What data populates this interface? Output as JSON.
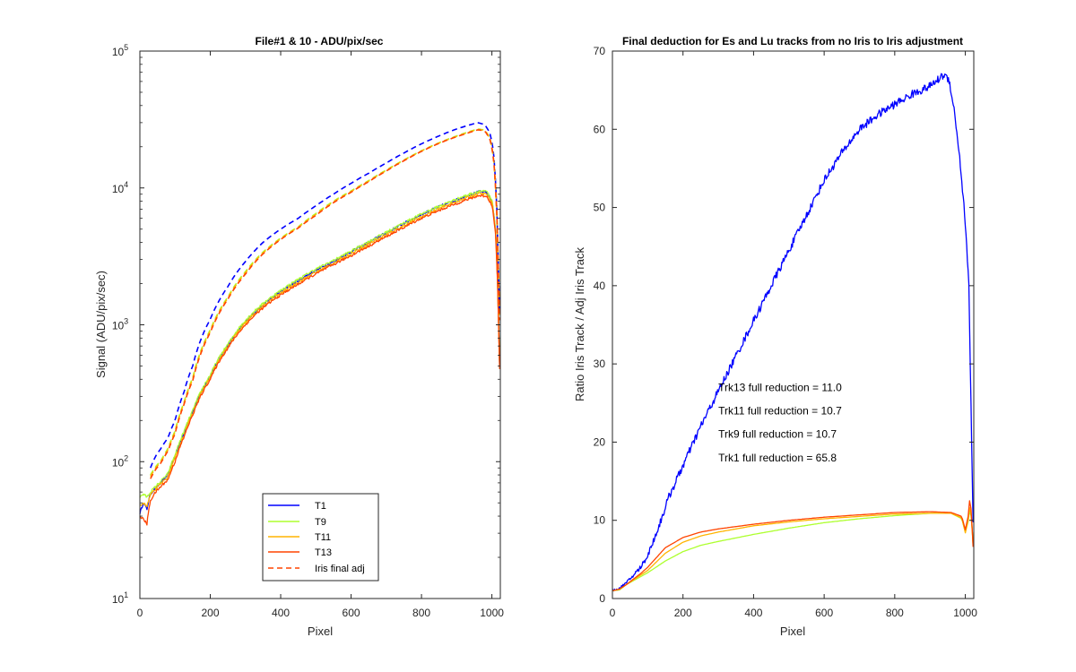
{
  "chart_data": [
    {
      "type": "line",
      "title": "File#1 & 10 - ADU/pix/sec",
      "xlabel": "Pixel",
      "ylabel": "Signal (ADU/pix/sec)",
      "xlim": [
        0,
        1024
      ],
      "ylim": [
        10,
        100000
      ],
      "yscale": "log",
      "grid": false,
      "xticks": [
        0,
        200,
        400,
        600,
        800,
        1000
      ],
      "xtick_labels": [
        "0",
        "200",
        "400",
        "600",
        "800",
        "1000"
      ],
      "yticks": [
        10,
        100,
        1000,
        10000,
        100000
      ],
      "ytick_labels": [
        {
          "base": "10",
          "exp": "1"
        },
        {
          "base": "10",
          "exp": "2"
        },
        {
          "base": "10",
          "exp": "3"
        },
        {
          "base": "10",
          "exp": "4"
        },
        {
          "base": "10",
          "exp": "5"
        }
      ],
      "legend": {
        "placement": "bottom-center",
        "entries": [
          {
            "label": "T1",
            "color": "#0000ff",
            "style": "solid"
          },
          {
            "label": "T9",
            "color": "#adff2f",
            "style": "solid"
          },
          {
            "label": "T11",
            "color": "#ffb400",
            "style": "solid"
          },
          {
            "label": "T13",
            "color": "#ff4500",
            "style": "solid"
          },
          {
            "label": "Iris final adj",
            "color": "#ff4500",
            "style": "dashed"
          }
        ]
      },
      "series": [
        {
          "name": "T1",
          "color": "#0000ff",
          "style": "solid",
          "noise": 0.04,
          "x": [
            0,
            10,
            20,
            30,
            45,
            60,
            80,
            100,
            125,
            150,
            200,
            250,
            300,
            350,
            400,
            450,
            500,
            550,
            600,
            650,
            700,
            750,
            800,
            850,
            900,
            940,
            965,
            985,
            1000,
            1010,
            1015,
            1019,
            1022
          ],
          "y": [
            42,
            50,
            45,
            58,
            64,
            70,
            80,
            110,
            160,
            230,
            420,
            700,
            1050,
            1400,
            1750,
            2100,
            2500,
            2900,
            3400,
            4000,
            4700,
            5500,
            6400,
            7300,
            8200,
            9000,
            9400,
            9300,
            8000,
            5000,
            2500,
            1000,
            500
          ]
        },
        {
          "name": "T9",
          "color": "#adff2f",
          "style": "solid",
          "noise": 0.04,
          "x": [
            0,
            10,
            20,
            30,
            45,
            60,
            80,
            100,
            125,
            150,
            200,
            250,
            300,
            350,
            400,
            450,
            500,
            550,
            600,
            650,
            700,
            750,
            800,
            850,
            900,
            940,
            965,
            985,
            1000,
            1010,
            1015,
            1019,
            1022
          ],
          "y": [
            55,
            58,
            55,
            60,
            66,
            72,
            82,
            112,
            165,
            235,
            430,
            720,
            1080,
            1430,
            1780,
            2150,
            2550,
            2950,
            3450,
            4050,
            4750,
            5550,
            6450,
            7350,
            8300,
            9050,
            9500,
            9400,
            8100,
            5100,
            2500,
            1000,
            500
          ]
        },
        {
          "name": "T11",
          "color": "#ffb400",
          "style": "solid",
          "noise": 0.04,
          "x": [
            0,
            10,
            20,
            30,
            45,
            60,
            80,
            100,
            125,
            150,
            200,
            250,
            300,
            350,
            400,
            450,
            500,
            550,
            600,
            650,
            700,
            750,
            800,
            850,
            900,
            940,
            965,
            985,
            1000,
            1010,
            1015,
            1019,
            1022
          ],
          "y": [
            48,
            50,
            47,
            57,
            63,
            69,
            78,
            105,
            155,
            225,
            410,
            690,
            1030,
            1370,
            1700,
            2050,
            2420,
            2820,
            3300,
            3900,
            4550,
            5300,
            6150,
            7050,
            7950,
            8700,
            9100,
            9000,
            7800,
            4900,
            2400,
            1000,
            500
          ]
        },
        {
          "name": "T13",
          "color": "#ff4500",
          "style": "solid",
          "noise": 0.04,
          "x": [
            0,
            10,
            20,
            30,
            45,
            60,
            80,
            100,
            125,
            150,
            200,
            250,
            300,
            350,
            400,
            450,
            500,
            550,
            600,
            650,
            700,
            750,
            800,
            850,
            900,
            940,
            965,
            985,
            1000,
            1010,
            1015,
            1019,
            1022
          ],
          "y": [
            40,
            38,
            35,
            52,
            60,
            66,
            74,
            100,
            150,
            218,
            400,
            675,
            1000,
            1330,
            1650,
            1980,
            2350,
            2750,
            3200,
            3750,
            4400,
            5150,
            6000,
            6850,
            7700,
            8400,
            8800,
            8700,
            7500,
            4700,
            2300,
            950,
            480
          ]
        },
        {
          "name": "Iris final adj (T1)",
          "color": "#0000ff",
          "style": "dashed",
          "noise": 0.0,
          "x": [
            30,
            45,
            60,
            80,
            100,
            125,
            150,
            200,
            250,
            300,
            350,
            400,
            450,
            500,
            550,
            600,
            650,
            700,
            750,
            800,
            850,
            900,
            940,
            960,
            980,
            995,
            1005,
            1012,
            1018,
            1022
          ],
          "y": [
            90,
            110,
            125,
            150,
            200,
            320,
            500,
            1100,
            1900,
            2900,
            4000,
            5000,
            6000,
            7400,
            9000,
            10800,
            12800,
            15200,
            18000,
            21000,
            24000,
            27000,
            29000,
            30000,
            29000,
            25000,
            18000,
            9000,
            3000,
            1200
          ]
        },
        {
          "name": "Iris final adj (T9)",
          "color": "#adff2f",
          "style": "dashed",
          "noise": 0.0,
          "x": [
            30,
            45,
            60,
            80,
            100,
            125,
            150,
            200,
            250,
            300,
            350,
            400,
            450,
            500,
            550,
            600,
            650,
            700,
            750,
            800,
            850,
            900,
            940,
            960,
            980,
            995,
            1005,
            1012,
            1018,
            1022
          ],
          "y": [
            80,
            92,
            102,
            125,
            168,
            270,
            410,
            920,
            1600,
            2450,
            3400,
            4300,
            5200,
            6500,
            8000,
            9500,
            11300,
            13500,
            16000,
            18700,
            21400,
            24000,
            26000,
            27000,
            26500,
            23000,
            16500,
            8500,
            2800,
            1100
          ]
        },
        {
          "name": "Iris final adj (T11)",
          "color": "#ffb400",
          "style": "dashed",
          "noise": 0.0,
          "x": [
            30,
            45,
            60,
            80,
            100,
            125,
            150,
            200,
            250,
            300,
            350,
            400,
            450,
            500,
            550,
            600,
            650,
            700,
            750,
            800,
            850,
            900,
            940,
            960,
            980,
            995,
            1005,
            1012,
            1018,
            1022
          ],
          "y": [
            78,
            90,
            100,
            122,
            165,
            265,
            400,
            900,
            1570,
            2400,
            3350,
            4250,
            5150,
            6400,
            7900,
            9400,
            11200,
            13400,
            15900,
            18600,
            21300,
            23800,
            25800,
            26800,
            26300,
            22800,
            16300,
            8400,
            2800,
            1100
          ]
        },
        {
          "name": "Iris final adj (T13)",
          "color": "#ff4500",
          "style": "dashed",
          "noise": 0.0,
          "x": [
            30,
            45,
            60,
            80,
            100,
            125,
            150,
            200,
            250,
            300,
            350,
            400,
            450,
            500,
            550,
            600,
            650,
            700,
            750,
            800,
            850,
            900,
            940,
            960,
            980,
            995,
            1005,
            1012,
            1018,
            1022
          ],
          "y": [
            75,
            88,
            98,
            120,
            160,
            260,
            390,
            880,
            1540,
            2350,
            3300,
            4200,
            5100,
            6300,
            7800,
            9300,
            11100,
            13300,
            15800,
            18500,
            21200,
            23700,
            25600,
            26600,
            26100,
            22600,
            16200,
            8300,
            2750,
            1080
          ]
        }
      ]
    },
    {
      "type": "line",
      "title": "Final deduction for Es and Lu tracks from no Iris to Iris adjustment",
      "xlabel": "Pixel",
      "ylabel": "Ratio Iris Track / Adj Iris Track",
      "xlim": [
        0,
        1024
      ],
      "ylim": [
        0,
        70
      ],
      "yscale": "linear",
      "grid": false,
      "xticks": [
        0,
        200,
        400,
        600,
        800,
        1000
      ],
      "xtick_labels": [
        "0",
        "200",
        "400",
        "600",
        "800",
        "1000"
      ],
      "yticks": [
        0,
        10,
        20,
        30,
        40,
        50,
        60,
        70
      ],
      "ytick_labels": [
        "0",
        "10",
        "20",
        "30",
        "40",
        "50",
        "60",
        "70"
      ],
      "annotations": [
        {
          "text": "Trk13 full reduction = 11.0",
          "x": 300,
          "y": 27.0
        },
        {
          "text": "Trk11 full reduction = 10.7",
          "x": 300,
          "y": 24.0
        },
        {
          "text": "Trk9 full reduction = 10.7",
          "x": 300,
          "y": 21.0
        },
        {
          "text": "Trk1 full reduction = 65.8",
          "x": 300,
          "y": 18.0
        }
      ],
      "series": [
        {
          "name": "Trk1",
          "color": "#0000ff",
          "style": "solid",
          "noise": 0.5,
          "x": [
            0,
            20,
            40,
            60,
            80,
            100,
            130,
            160,
            200,
            250,
            300,
            350,
            400,
            450,
            500,
            550,
            600,
            650,
            700,
            750,
            800,
            850,
            900,
            940,
            955,
            970,
            985,
            1000,
            1010,
            1018,
            1022
          ],
          "y": [
            1.0,
            1.3,
            2.0,
            3.0,
            4.0,
            5.5,
            9.0,
            13.0,
            17.0,
            22.0,
            26.5,
            31.0,
            35.5,
            40.0,
            44.5,
            49.0,
            53.5,
            57.0,
            60.0,
            61.8,
            63.2,
            64.5,
            65.5,
            67.0,
            66.2,
            62.0,
            56.0,
            48.0,
            40.0,
            20.0,
            10.0
          ]
        },
        {
          "name": "Trk9",
          "color": "#adff2f",
          "style": "solid",
          "noise": 0.0,
          "x": [
            0,
            20,
            40,
            60,
            80,
            100,
            150,
            200,
            250,
            300,
            400,
            500,
            600,
            700,
            800,
            900,
            960,
            990,
            1000,
            1008,
            1013,
            1018,
            1022
          ],
          "y": [
            1.0,
            1.1,
            1.8,
            2.3,
            2.8,
            3.3,
            4.8,
            6.0,
            6.8,
            7.3,
            8.2,
            9.0,
            9.7,
            10.2,
            10.6,
            10.9,
            10.9,
            10.2,
            8.5,
            9.8,
            11.5,
            10.0,
            7.0
          ]
        },
        {
          "name": "Trk11",
          "color": "#ffb400",
          "style": "solid",
          "noise": 0.0,
          "x": [
            0,
            20,
            40,
            60,
            80,
            100,
            150,
            200,
            250,
            300,
            400,
            500,
            600,
            700,
            800,
            900,
            960,
            990,
            1000,
            1008,
            1013,
            1018,
            1022
          ],
          "y": [
            1.0,
            1.2,
            1.8,
            2.4,
            3.0,
            3.6,
            5.8,
            7.2,
            8.0,
            8.5,
            9.3,
            9.8,
            10.2,
            10.5,
            10.8,
            10.9,
            10.9,
            10.3,
            8.4,
            10.0,
            12.0,
            10.2,
            6.8
          ]
        },
        {
          "name": "Trk13",
          "color": "#ff4500",
          "style": "solid",
          "noise": 0.0,
          "x": [
            0,
            20,
            40,
            60,
            80,
            100,
            150,
            200,
            250,
            300,
            400,
            500,
            600,
            700,
            800,
            900,
            960,
            990,
            1000,
            1008,
            1013,
            1018,
            1022
          ],
          "y": [
            1.0,
            1.2,
            1.8,
            2.5,
            3.2,
            4.0,
            6.5,
            7.8,
            8.5,
            8.9,
            9.5,
            10.0,
            10.4,
            10.7,
            11.0,
            11.1,
            11.0,
            10.5,
            8.8,
            10.5,
            13.0,
            10.5,
            6.6
          ]
        }
      ]
    }
  ]
}
